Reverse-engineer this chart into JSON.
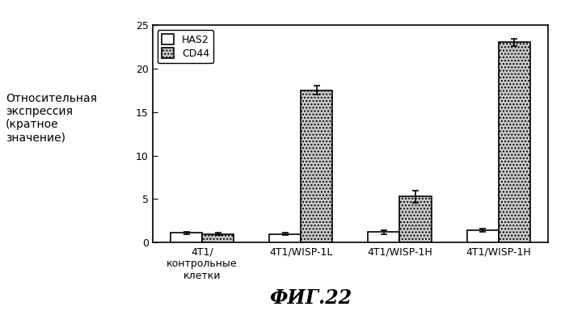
{
  "HAS2_values": [
    1.1,
    1.0,
    1.2,
    1.4
  ],
  "CD44_values": [
    1.0,
    17.5,
    5.3,
    23.0
  ],
  "HAS2_errors": [
    0.15,
    0.1,
    0.2,
    0.2
  ],
  "CD44_errors": [
    0.1,
    0.5,
    0.7,
    0.4
  ],
  "ylabel_lines": [
    "Относительная",
    "экспрессия",
    "(кратное",
    "значение)"
  ],
  "ylim": [
    0,
    25
  ],
  "yticks": [
    0,
    5,
    10,
    15,
    20,
    25
  ],
  "legend_labels": [
    "HAS2",
    "CD44"
  ],
  "has2_color": "#ffffff",
  "bar_edgecolor": "#000000",
  "bar_width": 0.32,
  "figure_title": "ФИГ.22",
  "background_color": "#ffffff",
  "font_size_ticks": 9,
  "font_size_ylabel": 10,
  "font_size_legend": 9,
  "font_size_title": 17,
  "xticklabels": [
    "4T1/\nконтрольные\nклетки",
    "4T1/WISP-1L",
    "4T1/WISP-1H",
    "4T1/WISP-1H"
  ]
}
